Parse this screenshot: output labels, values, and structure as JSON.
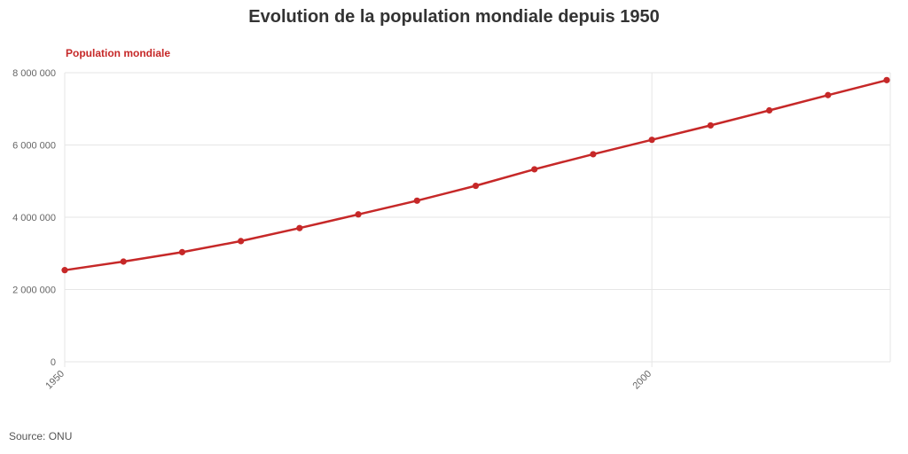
{
  "chart_data": {
    "type": "line",
    "title": "Evolution de la population mondiale depuis 1950",
    "xlabel": "",
    "ylabel": "",
    "x": [
      1950,
      1955,
      1960,
      1965,
      1970,
      1975,
      1980,
      1985,
      1990,
      1995,
      2000,
      2005,
      2010,
      2015,
      2020
    ],
    "series": [
      {
        "name": "Population mondiale",
        "color": "#c62828",
        "values": [
          2536000,
          2773000,
          3034000,
          3340000,
          3700000,
          4079000,
          4458000,
          4870000,
          5327000,
          5744000,
          6143000,
          6542000,
          6957000,
          7380000,
          7795000
        ]
      }
    ],
    "xlim": [
      1950,
      2020
    ],
    "ylim": [
      0,
      8000000
    ],
    "x_ticks": [
      1950,
      2000
    ],
    "x_tick_labels": [
      "1950",
      "2000"
    ],
    "y_ticks": [
      0,
      2000000,
      4000000,
      6000000,
      8000000
    ],
    "y_tick_labels": [
      "0",
      "2 000 000",
      "4 000 000",
      "6 000 000",
      "8 000 000"
    ],
    "grid": true,
    "legend": "top-left"
  },
  "footer": {
    "source": "Source: ONU"
  },
  "colors": {
    "series": "#c62828",
    "grid": "#e6e6e6",
    "axis_text": "#666666",
    "title": "#333333"
  }
}
